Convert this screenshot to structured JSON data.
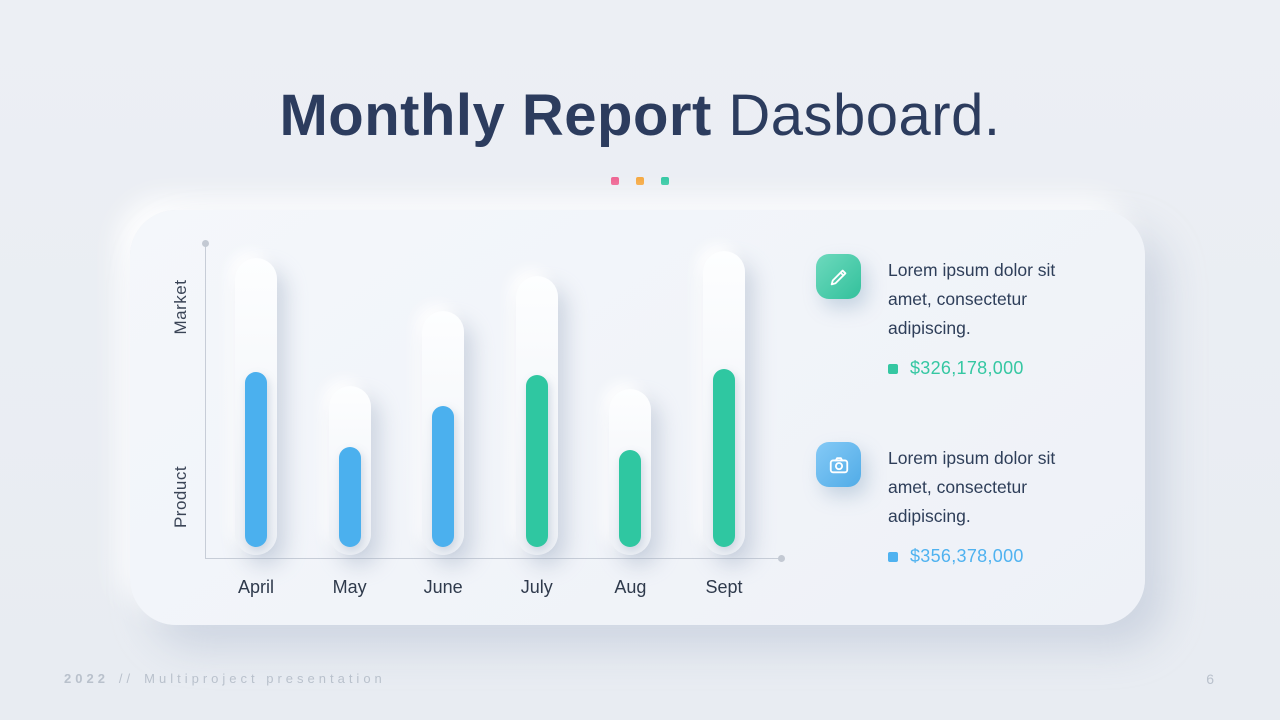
{
  "slide": {
    "title_bold": "Monthly Report",
    "title_regular": " Dasboard.",
    "accent_dots": [
      "#ee5f8f",
      "#f5a63b",
      "#2fc7a1"
    ]
  },
  "chart_data": {
    "type": "bar",
    "categories": [
      "April",
      "May",
      "June",
      "July",
      "Aug",
      "Sept"
    ],
    "series": [
      {
        "name": "capacity-track",
        "values": [
          95,
          54,
          78,
          89,
          53,
          97
        ]
      },
      {
        "name": "value",
        "values": [
          56,
          32,
          45,
          55,
          31,
          57
        ]
      }
    ],
    "bar_colors": [
      "#4bb0ee",
      "#4bb0ee",
      "#4bb0ee",
      "#2fc7a1",
      "#2fc7a1",
      "#2fc7a1"
    ],
    "title": "Monthly Report Dasboard",
    "xlabel": "",
    "ylabel_top": "Market",
    "ylabel_bottom": "Product",
    "ylim": [
      0,
      100
    ],
    "grid": false,
    "legend": "none"
  },
  "info_blocks": [
    {
      "icon": "pencil-icon",
      "icon_color": "#35cba4",
      "text": "Lorem ipsum dolor sit amet, consectetur adipiscing.",
      "value": "$326,178,000",
      "value_color": "#35c7a2"
    },
    {
      "icon": "camera-icon",
      "icon_color": "#55b5f3",
      "text": "Lorem ipsum dolor sit amet, consectetur adipiscing.",
      "value": "$356,378,000",
      "value_color": "#4fb2f0"
    }
  ],
  "footer": {
    "year": "2022",
    "separator": "//",
    "label": "Multiproject presentation",
    "page": "6"
  }
}
